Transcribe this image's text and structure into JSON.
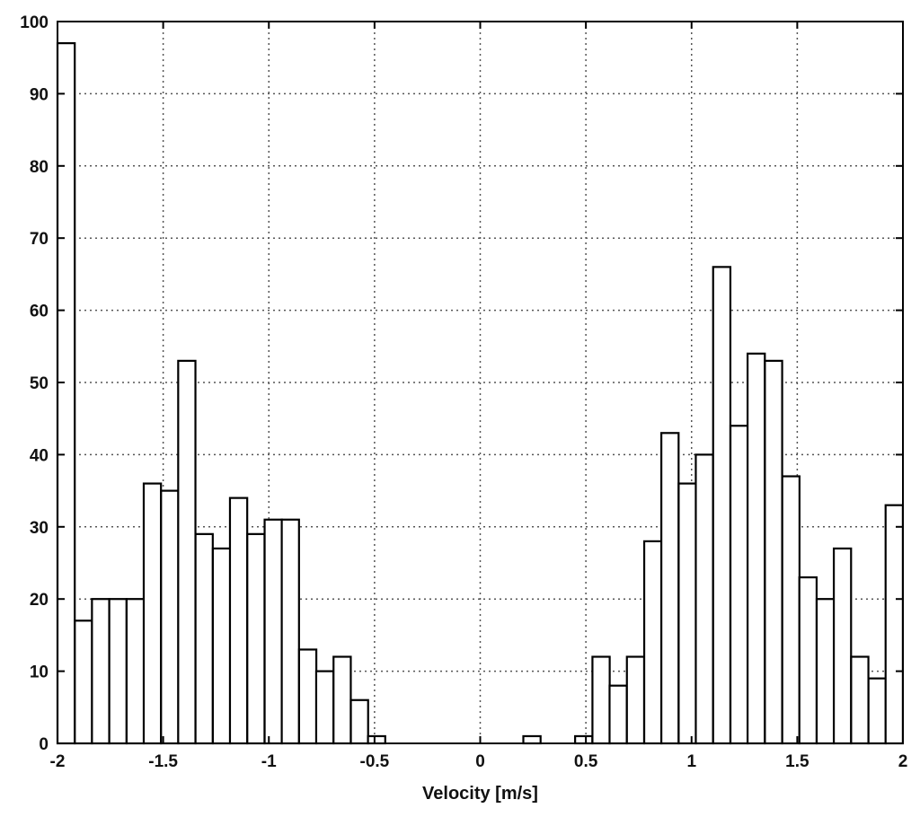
{
  "chart_data": {
    "type": "bar",
    "title": "",
    "xlabel": "Velocity [m/s]",
    "ylabel": "",
    "xlim": [
      -2,
      2
    ],
    "ylim": [
      0,
      100
    ],
    "grid": true,
    "bin_width": 0.08163,
    "x_ticks": [
      -2,
      -1.5,
      -1,
      -0.5,
      0,
      0.5,
      1,
      1.5,
      2
    ],
    "x_tick_labels": [
      "-2",
      "-1.5",
      "-1",
      "-0.5",
      "0",
      "0.5",
      "1",
      "1.5",
      "2"
    ],
    "y_ticks": [
      0,
      10,
      20,
      30,
      40,
      50,
      60,
      70,
      80,
      90,
      100
    ],
    "y_tick_labels": [
      "0",
      "10",
      "20",
      "30",
      "40",
      "50",
      "60",
      "70",
      "80",
      "90",
      "100"
    ],
    "series": [
      {
        "bins_left": [
          -2.0,
          -1.918,
          -1.837,
          -1.755,
          -1.673,
          -1.592,
          -1.51,
          -1.429,
          -1.347,
          -1.265,
          -1.184,
          -1.102,
          -1.02,
          -0.939,
          -0.857,
          -0.776,
          -0.694,
          -0.612,
          -0.531,
          -0.449,
          -0.367,
          -0.286,
          -0.204,
          -0.122,
          -0.041,
          0.041,
          0.122,
          0.204,
          0.286,
          0.367,
          0.449,
          0.531,
          0.612,
          0.694,
          0.776,
          0.857,
          0.939,
          1.02,
          1.102,
          1.184,
          1.265,
          1.347,
          1.429,
          1.51,
          1.592,
          1.673,
          1.755,
          1.837,
          1.918
        ],
        "values": [
          97,
          17,
          20,
          20,
          20,
          36,
          35,
          53,
          29,
          27,
          34,
          29,
          31,
          31,
          13,
          10,
          12,
          6,
          1,
          0,
          0,
          0,
          0,
          0,
          0,
          0,
          0,
          1,
          0,
          0,
          1,
          12,
          8,
          12,
          28,
          43,
          36,
          40,
          66,
          44,
          54,
          53,
          37,
          23,
          20,
          27,
          12,
          9,
          33
        ]
      }
    ]
  }
}
